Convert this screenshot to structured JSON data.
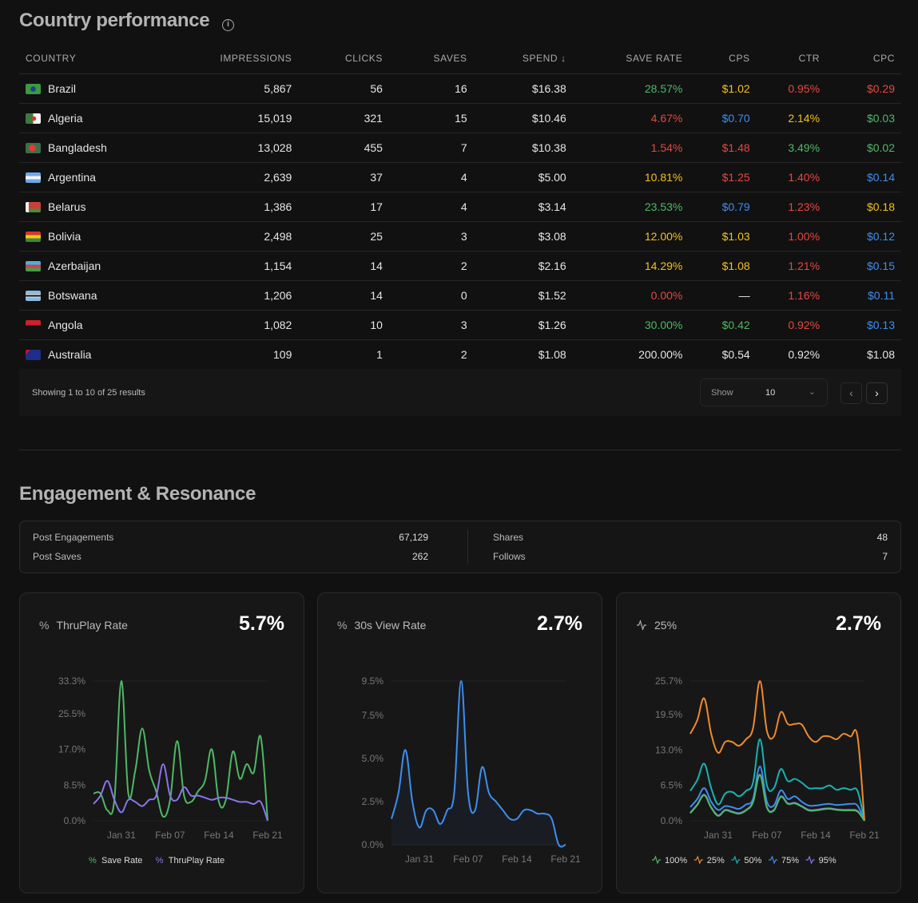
{
  "country": {
    "title": "Country performance",
    "info_icon": "info-icon",
    "columns": [
      "COUNTRY",
      "IMPRESSIONS",
      "CLICKS",
      "SAVES",
      "SPEND ↓",
      "SAVE RATE",
      "CPS",
      "CTR",
      "CPC"
    ],
    "rows": [
      {
        "country": "Brazil",
        "flag": "br",
        "cells": [
          [
            "5,867",
            "white"
          ],
          [
            "56",
            "white"
          ],
          [
            "16",
            "white"
          ],
          [
            "$16.38",
            "white"
          ],
          [
            "28.57%",
            "green"
          ],
          [
            "$1.02",
            "yellow"
          ],
          [
            "0.95%",
            "red"
          ],
          [
            "$0.29",
            "red"
          ]
        ]
      },
      {
        "country": "Algeria",
        "flag": "dz",
        "cells": [
          [
            "15,019",
            "white"
          ],
          [
            "321",
            "white"
          ],
          [
            "15",
            "white"
          ],
          [
            "$10.46",
            "white"
          ],
          [
            "4.67%",
            "red"
          ],
          [
            "$0.70",
            "blue"
          ],
          [
            "2.14%",
            "yellow"
          ],
          [
            "$0.03",
            "green"
          ]
        ]
      },
      {
        "country": "Bangladesh",
        "flag": "bd",
        "cells": [
          [
            "13,028",
            "white"
          ],
          [
            "455",
            "white"
          ],
          [
            "7",
            "white"
          ],
          [
            "$10.38",
            "white"
          ],
          [
            "1.54%",
            "red"
          ],
          [
            "$1.48",
            "red"
          ],
          [
            "3.49%",
            "green"
          ],
          [
            "$0.02",
            "green"
          ]
        ]
      },
      {
        "country": "Argentina",
        "flag": "ar",
        "cells": [
          [
            "2,639",
            "white"
          ],
          [
            "37",
            "white"
          ],
          [
            "4",
            "white"
          ],
          [
            "$5.00",
            "white"
          ],
          [
            "10.81%",
            "yellow"
          ],
          [
            "$1.25",
            "red"
          ],
          [
            "1.40%",
            "red"
          ],
          [
            "$0.14",
            "blue"
          ]
        ]
      },
      {
        "country": "Belarus",
        "flag": "by",
        "cells": [
          [
            "1,386",
            "white"
          ],
          [
            "17",
            "white"
          ],
          [
            "4",
            "white"
          ],
          [
            "$3.14",
            "white"
          ],
          [
            "23.53%",
            "green"
          ],
          [
            "$0.79",
            "blue"
          ],
          [
            "1.23%",
            "red"
          ],
          [
            "$0.18",
            "yellow"
          ]
        ]
      },
      {
        "country": "Bolivia",
        "flag": "bo",
        "cells": [
          [
            "2,498",
            "white"
          ],
          [
            "25",
            "white"
          ],
          [
            "3",
            "white"
          ],
          [
            "$3.08",
            "white"
          ],
          [
            "12.00%",
            "yellow"
          ],
          [
            "$1.03",
            "yellow"
          ],
          [
            "1.00%",
            "red"
          ],
          [
            "$0.12",
            "blue"
          ]
        ]
      },
      {
        "country": "Azerbaijan",
        "flag": "az",
        "cells": [
          [
            "1,154",
            "white"
          ],
          [
            "14",
            "white"
          ],
          [
            "2",
            "white"
          ],
          [
            "$2.16",
            "white"
          ],
          [
            "14.29%",
            "yellow"
          ],
          [
            "$1.08",
            "yellow"
          ],
          [
            "1.21%",
            "red"
          ],
          [
            "$0.15",
            "blue"
          ]
        ]
      },
      {
        "country": "Botswana",
        "flag": "bw",
        "cells": [
          [
            "1,206",
            "white"
          ],
          [
            "14",
            "white"
          ],
          [
            "0",
            "white"
          ],
          [
            "$1.52",
            "white"
          ],
          [
            "0.00%",
            "red"
          ],
          [
            "—",
            "white"
          ],
          [
            "1.16%",
            "red"
          ],
          [
            "$0.11",
            "blue"
          ]
        ]
      },
      {
        "country": "Angola",
        "flag": "ao",
        "cells": [
          [
            "1,082",
            "white"
          ],
          [
            "10",
            "white"
          ],
          [
            "3",
            "white"
          ],
          [
            "$1.26",
            "white"
          ],
          [
            "30.00%",
            "green"
          ],
          [
            "$0.42",
            "green"
          ],
          [
            "0.92%",
            "red"
          ],
          [
            "$0.13",
            "blue"
          ]
        ]
      },
      {
        "country": "Australia",
        "flag": "au",
        "cells": [
          [
            "109",
            "white"
          ],
          [
            "1",
            "white"
          ],
          [
            "2",
            "white"
          ],
          [
            "$1.08",
            "white"
          ],
          [
            "200.00%",
            "white"
          ],
          [
            "$0.54",
            "white"
          ],
          [
            "0.92%",
            "white"
          ],
          [
            "$1.08",
            "white"
          ]
        ]
      }
    ],
    "footer": {
      "showing": "Showing 1 to 10 of 25 results",
      "show_label": "Show",
      "show_value": "10"
    }
  },
  "engagement": {
    "title": "Engagement & Resonance",
    "stats": [
      {
        "label": "Post Engagements",
        "value": "67,129"
      },
      {
        "label": "Post Saves",
        "value": "262"
      },
      {
        "label": "Shares",
        "value": "48"
      },
      {
        "label": "Follows",
        "value": "7"
      }
    ]
  },
  "colors": {
    "green": "#4fb865",
    "purple": "#8b74f0",
    "blue": "#3d8ef0",
    "orange": "#f08a2c",
    "teal": "#17b3b3"
  },
  "chart_data": [
    {
      "type": "line",
      "title": "ThruPlay Rate",
      "icon": "%",
      "headline": "5.7%",
      "yticks": [
        "0.0%",
        "8.5%",
        "17.0%",
        "25.5%",
        "33.3%"
      ],
      "ytickvals": [
        0,
        8.5,
        17,
        25.5,
        33.3
      ],
      "ylim": [
        0,
        33.3
      ],
      "xticks": [
        "Jan 31",
        "Feb 07",
        "Feb 14",
        "Feb 21"
      ],
      "xtickidx": [
        4,
        11,
        18,
        25
      ],
      "series": [
        {
          "name": "Save Rate",
          "color": "green",
          "values": [
            6.5,
            6.5,
            2.5,
            5,
            33.3,
            6.5,
            12,
            22,
            12,
            7,
            1,
            5,
            19,
            6,
            4.5,
            7,
            9.5,
            17,
            4.5,
            5,
            16.5,
            10,
            13.5,
            11.5,
            20,
            0
          ]
        },
        {
          "name": "ThruPlay Rate",
          "color": "purple",
          "values": [
            4,
            6,
            9.5,
            5,
            2,
            5,
            4.5,
            3.5,
            5,
            6,
            13.5,
            6,
            5,
            8,
            6,
            6,
            5.5,
            5,
            5.5,
            5.5,
            5,
            4.5,
            4.5,
            4,
            4.5,
            0
          ]
        }
      ]
    },
    {
      "type": "area",
      "title": "30s View Rate",
      "icon": "%",
      "headline": "2.7%",
      "yticks": [
        "0.0%",
        "2.5%",
        "5.0%",
        "7.5%",
        "9.5%"
      ],
      "ytickvals": [
        0,
        2.5,
        5,
        7.5,
        9.5
      ],
      "ylim": [
        0,
        9.5
      ],
      "xticks": [
        "Jan 31",
        "Feb 07",
        "Feb 14",
        "Feb 21"
      ],
      "xtickidx": [
        4,
        11,
        18,
        25
      ],
      "series": [
        {
          "name": "30s View Rate",
          "color": "blue",
          "values": [
            1.5,
            3,
            5.5,
            2.5,
            1,
            2,
            2,
            1.2,
            2,
            3,
            9.5,
            3,
            2,
            4.5,
            3,
            2.5,
            2,
            1.5,
            1.5,
            2,
            2,
            1.8,
            1.8,
            1.5,
            0,
            0
          ]
        }
      ]
    },
    {
      "type": "line",
      "title": "25%",
      "icon": "activity",
      "headline": "2.7%",
      "yticks": [
        "0.0%",
        "6.5%",
        "13.0%",
        "19.5%",
        "25.7%"
      ],
      "ytickvals": [
        0,
        6.5,
        13,
        19.5,
        25.7
      ],
      "ylim": [
        0,
        25.7
      ],
      "xticks": [
        "Jan 31",
        "Feb 07",
        "Feb 14",
        "Feb 21"
      ],
      "xtickidx": [
        4,
        11,
        18,
        25
      ],
      "series": [
        {
          "name": "100%",
          "color": "green",
          "values": [
            1.4,
            2.9,
            4.7,
            2.4,
            0.9,
            1.9,
            1.6,
            1.3,
            1.9,
            3.4,
            8.4,
            2.4,
            1.9,
            4.4,
            3.1,
            3.2,
            2.6,
            1.9,
            1.9,
            2.1,
            2.2,
            2,
            1.9,
            1.9,
            1.7,
            0
          ]
        },
        {
          "name": "25%",
          "color": "orange",
          "values": [
            16,
            18.5,
            22.5,
            16,
            12.5,
            14.5,
            14.5,
            13.8,
            15,
            17,
            25.7,
            16.5,
            15.5,
            20,
            17.8,
            17.8,
            17.7,
            15.5,
            14.5,
            15.5,
            15.5,
            15,
            16,
            15.5,
            15.5,
            0
          ]
        },
        {
          "name": "50%",
          "color": "teal",
          "values": [
            5.5,
            7.5,
            10.5,
            6,
            3,
            5,
            5.3,
            4.5,
            5.5,
            7,
            15,
            6.5,
            6,
            9.5,
            7.3,
            7.7,
            7,
            6,
            6,
            6,
            6.5,
            5.7,
            6,
            5.7,
            5.5,
            0
          ]
        },
        {
          "name": "75%",
          "color": "blue",
          "values": [
            2.5,
            4,
            6,
            3.5,
            2,
            2.7,
            2.5,
            2.2,
            3,
            4,
            10,
            3.5,
            2.8,
            5.6,
            4,
            4.5,
            3.5,
            2.8,
            2.8,
            3,
            3.1,
            2.9,
            3,
            3.1,
            2.8,
            0
          ]
        },
        {
          "name": "95%",
          "color": "purple",
          "values": [
            1.5,
            3,
            4.8,
            2.5,
            1,
            2,
            1.7,
            1.4,
            2,
            3.5,
            8.5,
            2.5,
            2,
            4.5,
            3.2,
            3.3,
            2.7,
            2,
            2,
            2.2,
            2.3,
            2.1,
            2,
            2,
            1.8,
            0
          ]
        }
      ]
    }
  ]
}
